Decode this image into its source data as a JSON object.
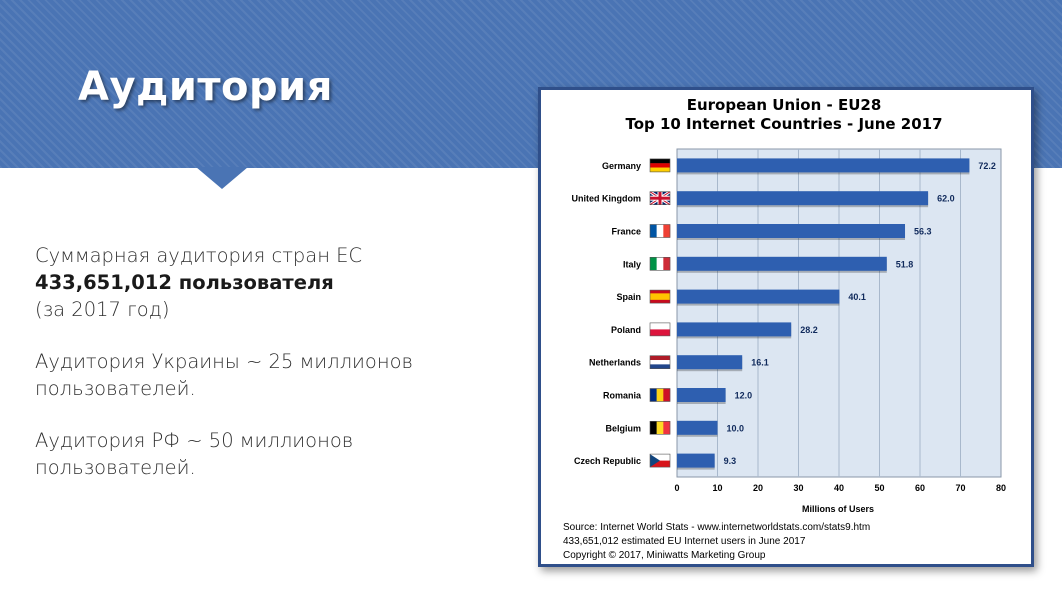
{
  "slide": {
    "title": "Аудитория",
    "paragraphs": [
      {
        "lines": [
          "Суммарная аудитория стран ЕС"
        ],
        "bold": "433,651,012 пользователя",
        "tail": "(за 2017 год)"
      },
      {
        "lines": [
          "Аудитория Украины ~ 25 миллионов",
          "пользователей."
        ]
      },
      {
        "lines": [
          "Аудитория РФ ~ 50 миллионов",
          "пользователей."
        ]
      }
    ]
  },
  "chart_data": {
    "type": "bar",
    "orientation": "horizontal",
    "title": "European Union - EU28",
    "subtitle": "Top 10 Internet Countries - June 2017",
    "categories": [
      "Germany",
      "United Kingdom",
      "France",
      "Italy",
      "Spain",
      "Poland",
      "Netherlands",
      "Romania",
      "Belgium",
      "Czech Republic"
    ],
    "values": [
      72.2,
      62.0,
      56.3,
      51.8,
      40.1,
      28.2,
      16.1,
      12.0,
      10.0,
      9.3
    ],
    "value_labels": [
      "72.2",
      "62.0",
      "56.3",
      "51.8",
      "40.1",
      "28.2",
      "16.1",
      "12.0",
      "10.0",
      "9.3"
    ],
    "xlabel": "Millions of Users",
    "xlim": [
      0,
      80
    ],
    "xticks": [
      "0",
      "10",
      "20",
      "30",
      "40",
      "50",
      "60",
      "70",
      "80"
    ],
    "grid": true,
    "bar_color": "#2e5fb0",
    "plot_background": "#dce6f2",
    "source_lines": [
      "Source: Internet World Stats  -  www.internetworldstats.com/stats9.htm",
      "433,651,012 estimated EU Internet users in June 2017",
      "Copyright © 2017, Miniwatts Marketing Group"
    ]
  },
  "colors": {
    "banner": "#4a74b4",
    "frame_border": "#2f4f8a"
  }
}
